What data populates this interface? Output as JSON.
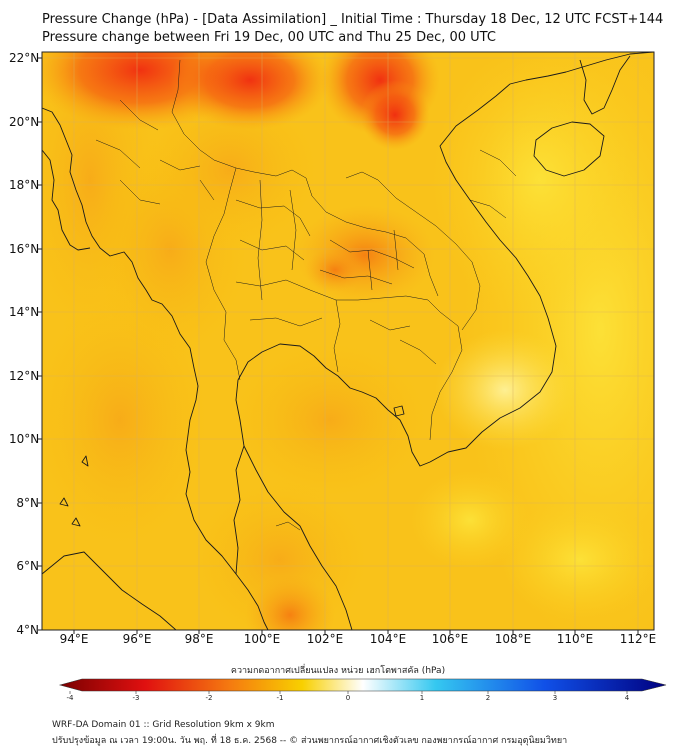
{
  "title_line1": "Pressure Change (hPa) - [Data Assimilation] _ Initial Time : Thursday 18 Dec, 12 UTC FCST+144",
  "title_line2": "Pressure change between Fri 19 Dec, 00 UTC and Thu 25 Dec, 00 UTC",
  "lat_labels": [
    "22°N",
    "20°N",
    "18°N",
    "16°N",
    "14°N",
    "12°N",
    "10°N",
    "8°N",
    "6°N",
    "4°N"
  ],
  "lon_labels": [
    "94°E",
    "96°E",
    "98°E",
    "100°E",
    "102°E",
    "104°E",
    "106°E",
    "108°E",
    "110°E",
    "112°E"
  ],
  "colorbar": {
    "label": "ความกดอากาศเปลี่ยนแปลง หน่วย เฮกโตพาสคัล (hPa)",
    "ticks": [
      "-4",
      "-3",
      "-2",
      "-1",
      "0",
      "1",
      "2",
      "3",
      "4"
    ],
    "min": -4,
    "max": 4,
    "colors": {
      "neg_dark": "#7a0000",
      "neg_red": "#e01010",
      "neg_orange": "#f57a10",
      "neg_yellow": "#f8d000",
      "zero": "#ffffff",
      "pos_cyan": "#35c8f0",
      "pos_blue": "#1050e8",
      "pos_navy": "#000080"
    }
  },
  "footer_line1": "WRF-DA Domain 01 :: Grid Resolution 9km x 9km",
  "footer_line2": "ปรับปรุงข้อมูล ณ เวลา 19:00น. วัน พฤ. ที่ 18 ธ.ค. 2568 -- © ส่วนพยากรณ์อากาศเชิงตัวเลข กองพยากรณ์อากาศ กรมอุตุนิยมวิทยา"
}
